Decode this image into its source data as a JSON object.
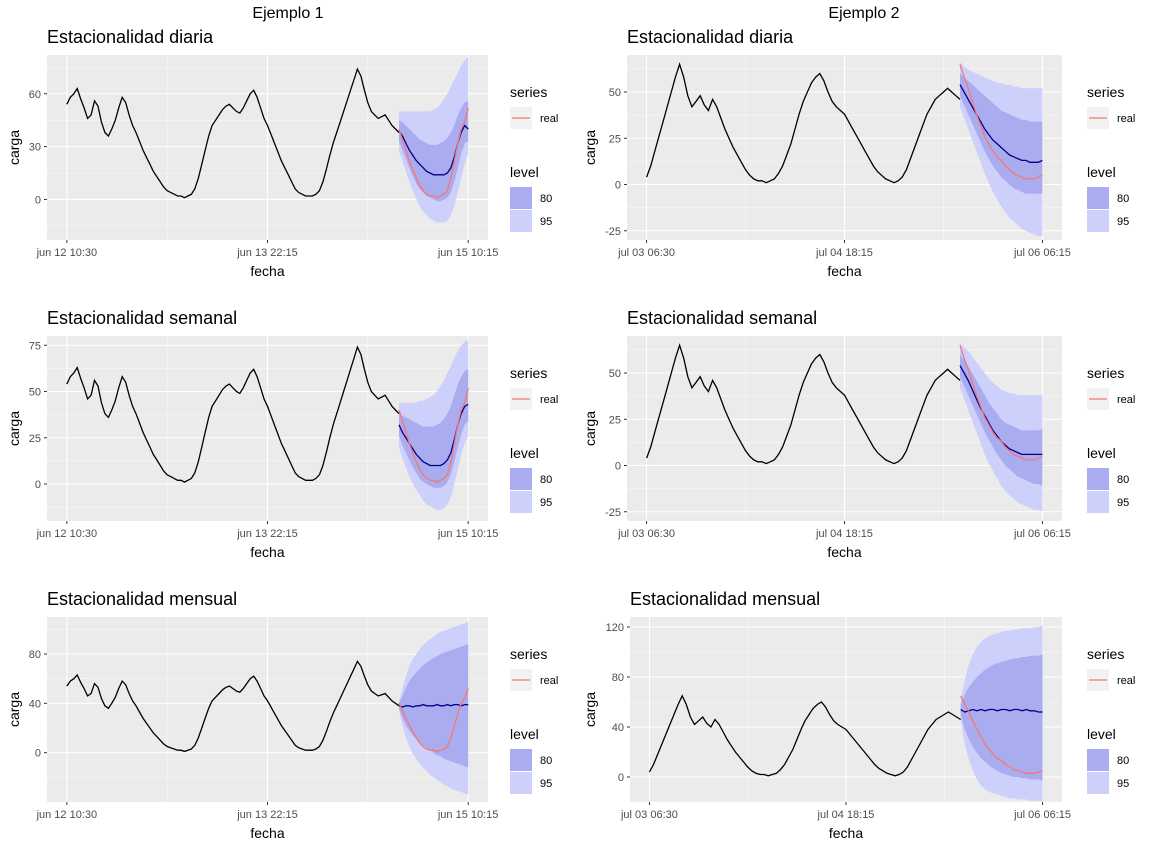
{
  "columns": [
    {
      "title": "Ejemplo 1"
    },
    {
      "title": "Ejemplo 2"
    }
  ],
  "legend": {
    "series_title": "series",
    "series_item": "real",
    "level_title": "level",
    "level_items": [
      "80",
      "95"
    ]
  },
  "colors": {
    "history": "#000000",
    "real": "#F8766D",
    "forecast_mean": "#00008B",
    "band80": "#A9ADF0",
    "band95": "#CCD0FA",
    "panel_bg": "#EBEBEB",
    "grid": "#FFFFFF"
  },
  "chart_data": [
    {
      "type": "line",
      "title": "Estacionalidad diaria",
      "xlabel": "fecha",
      "ylabel": "carga",
      "x_ticks": [
        "jun 12 10:30",
        "jun 13 22:15",
        "jun 15 10:15"
      ],
      "y_ticks": [
        0,
        30,
        60
      ],
      "ylim": [
        -23,
        82
      ],
      "history": [
        54,
        58,
        60,
        63,
        57,
        52,
        46,
        48,
        56,
        53,
        44,
        38,
        36,
        40,
        45,
        52,
        58,
        55,
        48,
        42,
        38,
        33,
        28,
        24,
        20,
        16,
        13,
        10,
        7,
        5,
        4,
        3,
        2,
        2,
        1,
        2,
        3,
        6,
        12,
        20,
        28,
        36,
        42,
        45,
        48,
        51,
        53,
        54,
        52,
        50,
        49,
        52,
        56,
        60,
        62,
        58,
        52,
        46,
        42,
        37,
        32,
        27,
        22,
        18,
        14,
        10,
        6,
        4,
        3,
        2,
        2,
        2,
        3,
        5,
        10,
        17,
        25,
        32,
        38,
        44,
        50,
        56,
        62,
        68,
        74,
        70,
        62,
        55,
        50,
        48,
        46,
        47,
        48,
        45,
        42,
        40,
        38
      ],
      "real": [
        40,
        34,
        28,
        22,
        17,
        12,
        8,
        5,
        3,
        2,
        2,
        1,
        2,
        3,
        5,
        12,
        22,
        32,
        40,
        44,
        52
      ],
      "mean": [
        39,
        36,
        32,
        28,
        25,
        22,
        20,
        18,
        16,
        15,
        14,
        14,
        14,
        14,
        15,
        18,
        24,
        32,
        38,
        42,
        40
      ],
      "lo80": [
        33,
        28,
        23,
        18,
        13,
        9,
        6,
        4,
        2,
        1,
        0,
        -1,
        -1,
        0,
        1,
        4,
        10,
        18,
        26,
        32,
        33
      ],
      "hi80": [
        45,
        44,
        42,
        40,
        38,
        36,
        34,
        33,
        32,
        31,
        31,
        31,
        32,
        33,
        35,
        38,
        42,
        48,
        52,
        55,
        56
      ],
      "lo95": [
        28,
        22,
        16,
        10,
        5,
        0,
        -4,
        -7,
        -9,
        -11,
        -12,
        -13,
        -13,
        -13,
        -12,
        -9,
        -4,
        4,
        12,
        20,
        26
      ],
      "hi95": [
        50,
        50,
        50,
        50,
        50,
        50,
        50,
        50,
        50,
        50,
        51,
        52,
        54,
        57,
        60,
        64,
        68,
        72,
        76,
        79,
        81
      ]
    },
    {
      "type": "line",
      "title": "Estacionalidad diaria",
      "xlabel": "fecha",
      "ylabel": "carga",
      "x_ticks": [
        "jul 03 06:30",
        "jul 04 18:15",
        "jul 06 06:15"
      ],
      "y_ticks": [
        -25,
        0,
        25,
        50
      ],
      "ylim": [
        -30,
        70
      ],
      "history": [
        4,
        10,
        18,
        26,
        34,
        42,
        50,
        58,
        65,
        58,
        48,
        42,
        45,
        48,
        43,
        40,
        46,
        42,
        36,
        30,
        25,
        20,
        16,
        12,
        8,
        5,
        3,
        2,
        2,
        1,
        2,
        3,
        6,
        10,
        16,
        22,
        30,
        38,
        45,
        50,
        55,
        58,
        60,
        56,
        50,
        45,
        42,
        40,
        38,
        34,
        30,
        26,
        22,
        18,
        14,
        10,
        7,
        5,
        3,
        2,
        1,
        2,
        4,
        8,
        14,
        20,
        26,
        32,
        38,
        42,
        46,
        48,
        50,
        52,
        50,
        48,
        46
      ],
      "real": [
        65,
        58,
        52,
        45,
        38,
        32,
        26,
        22,
        18,
        15,
        13,
        10,
        8,
        6,
        5,
        4,
        3,
        3,
        3,
        4,
        5
      ],
      "mean": [
        54,
        50,
        46,
        42,
        38,
        34,
        30,
        27,
        24,
        22,
        20,
        18,
        16,
        15,
        14,
        13,
        13,
        12,
        12,
        12,
        13
      ],
      "lo80": [
        48,
        43,
        38,
        33,
        28,
        23,
        18,
        14,
        10,
        7,
        4,
        2,
        0,
        -2,
        -3,
        -4,
        -5,
        -5,
        -5,
        -5,
        -5
      ],
      "hi80": [
        60,
        58,
        56,
        54,
        52,
        50,
        48,
        46,
        44,
        42,
        40,
        39,
        38,
        37,
        36,
        35,
        35,
        34,
        34,
        34,
        34
      ],
      "lo95": [
        42,
        36,
        30,
        24,
        18,
        12,
        6,
        1,
        -4,
        -8,
        -12,
        -15,
        -18,
        -20,
        -22,
        -24,
        -25,
        -26,
        -27,
        -28,
        -28
      ],
      "hi95": [
        66,
        64,
        62,
        61,
        60,
        59,
        58,
        57,
        56,
        55,
        55,
        54,
        54,
        53,
        53,
        52,
        52,
        52,
        52,
        52,
        52
      ]
    },
    {
      "type": "line",
      "title": "Estacionalidad semanal",
      "xlabel": "fecha",
      "ylabel": "carga",
      "x_ticks": [
        "jun 12 10:30",
        "jun 13 22:15",
        "jun 15 10:15"
      ],
      "y_ticks": [
        0,
        25,
        50,
        75
      ],
      "ylim": [
        -20,
        80
      ],
      "history": [
        54,
        58,
        60,
        63,
        57,
        52,
        46,
        48,
        56,
        53,
        44,
        38,
        36,
        40,
        45,
        52,
        58,
        55,
        48,
        42,
        38,
        33,
        28,
        24,
        20,
        16,
        13,
        10,
        7,
        5,
        4,
        3,
        2,
        2,
        1,
        2,
        3,
        6,
        12,
        20,
        28,
        36,
        42,
        45,
        48,
        51,
        53,
        54,
        52,
        50,
        49,
        52,
        56,
        60,
        62,
        58,
        52,
        46,
        42,
        37,
        32,
        27,
        22,
        18,
        14,
        10,
        6,
        4,
        3,
        2,
        2,
        2,
        3,
        5,
        10,
        17,
        25,
        32,
        38,
        44,
        50,
        56,
        62,
        68,
        74,
        70,
        62,
        55,
        50,
        48,
        46,
        47,
        48,
        45,
        42,
        40,
        38
      ],
      "real": [
        40,
        34,
        28,
        22,
        17,
        12,
        8,
        5,
        3,
        2,
        2,
        1,
        2,
        3,
        5,
        12,
        22,
        32,
        40,
        44,
        52
      ],
      "mean": [
        32,
        28,
        25,
        22,
        19,
        16,
        14,
        12,
        11,
        10,
        10,
        10,
        10,
        11,
        13,
        17,
        24,
        32,
        38,
        42,
        43
      ],
      "lo80": [
        26,
        21,
        17,
        13,
        9,
        6,
        3,
        1,
        0,
        -1,
        -2,
        -2,
        -2,
        -1,
        1,
        5,
        12,
        20,
        27,
        32,
        34
      ],
      "hi80": [
        38,
        37,
        36,
        35,
        34,
        33,
        32,
        31,
        31,
        31,
        31,
        32,
        33,
        35,
        38,
        42,
        48,
        54,
        58,
        61,
        62
      ],
      "lo95": [
        20,
        14,
        9,
        4,
        0,
        -3,
        -6,
        -9,
        -11,
        -12,
        -13,
        -14,
        -14,
        -13,
        -11,
        -7,
        0,
        8,
        16,
        22,
        26
      ],
      "hi95": [
        44,
        44,
        44,
        44,
        44,
        44,
        45,
        45,
        46,
        47,
        48,
        50,
        53,
        56,
        60,
        64,
        68,
        72,
        75,
        77,
        78
      ]
    },
    {
      "type": "line",
      "title": "Estacionalidad semanal",
      "xlabel": "fecha",
      "ylabel": "carga",
      "x_ticks": [
        "jul 03 06:30",
        "jul 04 18:15",
        "jul 06 06:15"
      ],
      "y_ticks": [
        -25,
        0,
        25,
        50
      ],
      "ylim": [
        -30,
        70
      ],
      "history": [
        4,
        10,
        18,
        26,
        34,
        42,
        50,
        58,
        65,
        58,
        48,
        42,
        45,
        48,
        43,
        40,
        46,
        42,
        36,
        30,
        25,
        20,
        16,
        12,
        8,
        5,
        3,
        2,
        2,
        1,
        2,
        3,
        6,
        10,
        16,
        22,
        30,
        38,
        45,
        50,
        55,
        58,
        60,
        56,
        50,
        45,
        42,
        40,
        38,
        34,
        30,
        26,
        22,
        18,
        14,
        10,
        7,
        5,
        3,
        2,
        1,
        2,
        4,
        8,
        14,
        20,
        26,
        32,
        38,
        42,
        46,
        48,
        50,
        52,
        50,
        48,
        46
      ],
      "real": [
        65,
        58,
        52,
        45,
        38,
        32,
        26,
        22,
        18,
        15,
        13,
        10,
        8,
        6,
        5,
        4,
        3,
        3,
        3,
        4,
        5
      ],
      "mean": [
        54,
        50,
        46,
        41,
        36,
        31,
        27,
        23,
        19,
        16,
        13,
        11,
        9,
        8,
        7,
        6,
        6,
        6,
        6,
        6,
        6
      ],
      "lo80": [
        48,
        43,
        38,
        33,
        28,
        23,
        18,
        14,
        10,
        6,
        3,
        0,
        -2,
        -4,
        -6,
        -7,
        -8,
        -9,
        -10,
        -10,
        -11
      ],
      "hi80": [
        60,
        57,
        54,
        50,
        46,
        42,
        38,
        34,
        31,
        28,
        25,
        23,
        22,
        21,
        20,
        19,
        19,
        19,
        19,
        19,
        20
      ],
      "lo95": [
        42,
        36,
        30,
        24,
        18,
        12,
        6,
        1,
        -3,
        -7,
        -11,
        -14,
        -16,
        -18,
        -20,
        -21,
        -22,
        -23,
        -24,
        -24,
        -25
      ],
      "hi95": [
        66,
        64,
        62,
        59,
        56,
        53,
        50,
        47,
        45,
        43,
        41,
        40,
        39,
        39,
        38,
        38,
        38,
        38,
        38,
        38,
        38
      ]
    },
    {
      "type": "line",
      "title": "Estacionalidad mensual",
      "xlabel": "fecha",
      "ylabel": "carga",
      "x_ticks": [
        "jun 12 10:30",
        "jun 13 22:15",
        "jun 15 10:15"
      ],
      "y_ticks": [
        0,
        40,
        80
      ],
      "ylim": [
        -40,
        110
      ],
      "history": [
        54,
        58,
        60,
        63,
        57,
        52,
        46,
        48,
        56,
        53,
        44,
        38,
        36,
        40,
        45,
        52,
        58,
        55,
        48,
        42,
        38,
        33,
        28,
        24,
        20,
        16,
        13,
        10,
        7,
        5,
        4,
        3,
        2,
        2,
        1,
        2,
        3,
        6,
        12,
        20,
        28,
        36,
        42,
        45,
        48,
        51,
        53,
        54,
        52,
        50,
        49,
        52,
        56,
        60,
        62,
        58,
        52,
        46,
        42,
        37,
        32,
        27,
        22,
        18,
        14,
        10,
        6,
        4,
        3,
        2,
        2,
        2,
        3,
        5,
        10,
        17,
        25,
        32,
        38,
        44,
        50,
        56,
        62,
        68,
        74,
        70,
        62,
        55,
        50,
        48,
        46,
        47,
        48,
        45,
        42,
        40,
        38
      ],
      "real": [
        40,
        34,
        28,
        22,
        17,
        12,
        8,
        5,
        3,
        2,
        2,
        1,
        2,
        3,
        5,
        12,
        22,
        32,
        40,
        44,
        52
      ],
      "mean": [
        38,
        37,
        38,
        38,
        37,
        38,
        38,
        39,
        38,
        38,
        38,
        39,
        38,
        38,
        39,
        38,
        39,
        39,
        38,
        39,
        39
      ],
      "lo80": [
        36,
        28,
        22,
        18,
        14,
        11,
        8,
        6,
        4,
        2,
        0,
        -2,
        -3,
        -5,
        -6,
        -7,
        -8,
        -9,
        -10,
        -11,
        -12
      ],
      "hi80": [
        40,
        46,
        53,
        58,
        62,
        65,
        68,
        71,
        73,
        75,
        77,
        78,
        80,
        81,
        82,
        83,
        84,
        85,
        86,
        87,
        88
      ],
      "lo95": [
        34,
        22,
        12,
        5,
        -1,
        -5,
        -9,
        -12,
        -15,
        -18,
        -20,
        -22,
        -24,
        -26,
        -27,
        -29,
        -30,
        -31,
        -32,
        -33,
        -34
      ],
      "hi95": [
        42,
        52,
        62,
        70,
        76,
        80,
        84,
        87,
        90,
        92,
        94,
        96,
        98,
        99,
        100,
        101,
        102,
        103,
        104,
        105,
        106
      ]
    },
    {
      "type": "line",
      "title": "Estacionalidad mensual",
      "xlabel": "fecha",
      "ylabel": "carga",
      "x_ticks": [
        "jul 03 06:30",
        "jul 04 18:15",
        "jul 06 06:15"
      ],
      "y_ticks": [
        0,
        40,
        80,
        120
      ],
      "ylim": [
        -20,
        128
      ],
      "history": [
        4,
        10,
        18,
        26,
        34,
        42,
        50,
        58,
        65,
        58,
        48,
        42,
        45,
        48,
        43,
        40,
        46,
        42,
        36,
        30,
        25,
        20,
        16,
        12,
        8,
        5,
        3,
        2,
        2,
        1,
        2,
        3,
        6,
        10,
        16,
        22,
        30,
        38,
        45,
        50,
        55,
        58,
        60,
        56,
        50,
        45,
        42,
        40,
        38,
        34,
        30,
        26,
        22,
        18,
        14,
        10,
        7,
        5,
        3,
        2,
        1,
        2,
        4,
        8,
        14,
        20,
        26,
        32,
        38,
        42,
        46,
        48,
        50,
        52,
        50,
        48,
        46
      ],
      "real": [
        65,
        58,
        52,
        45,
        38,
        32,
        26,
        22,
        18,
        15,
        13,
        10,
        8,
        6,
        5,
        4,
        3,
        3,
        3,
        4,
        5
      ],
      "mean": [
        54,
        52,
        53,
        54,
        53,
        54,
        53,
        54,
        54,
        53,
        54,
        54,
        53,
        54,
        54,
        53,
        54,
        53,
        53,
        52,
        52
      ],
      "lo80": [
        50,
        38,
        30,
        24,
        19,
        15,
        12,
        9,
        7,
        5,
        3,
        2,
        1,
        0,
        0,
        -1,
        -1,
        -2,
        -2,
        -2,
        -3
      ],
      "hi80": [
        58,
        66,
        72,
        76,
        80,
        83,
        86,
        88,
        90,
        91,
        92,
        93,
        94,
        95,
        95,
        96,
        96,
        97,
        97,
        97,
        98
      ],
      "lo95": [
        46,
        26,
        14,
        5,
        -2,
        -7,
        -10,
        -12,
        -13,
        -14,
        -15,
        -16,
        -17,
        -17,
        -18,
        -18,
        -18,
        -19,
        -19,
        -19,
        -19
      ],
      "hi95": [
        62,
        78,
        90,
        98,
        104,
        108,
        111,
        113,
        114,
        115,
        116,
        117,
        117,
        118,
        118,
        119,
        119,
        119,
        120,
        120,
        121
      ]
    }
  ]
}
